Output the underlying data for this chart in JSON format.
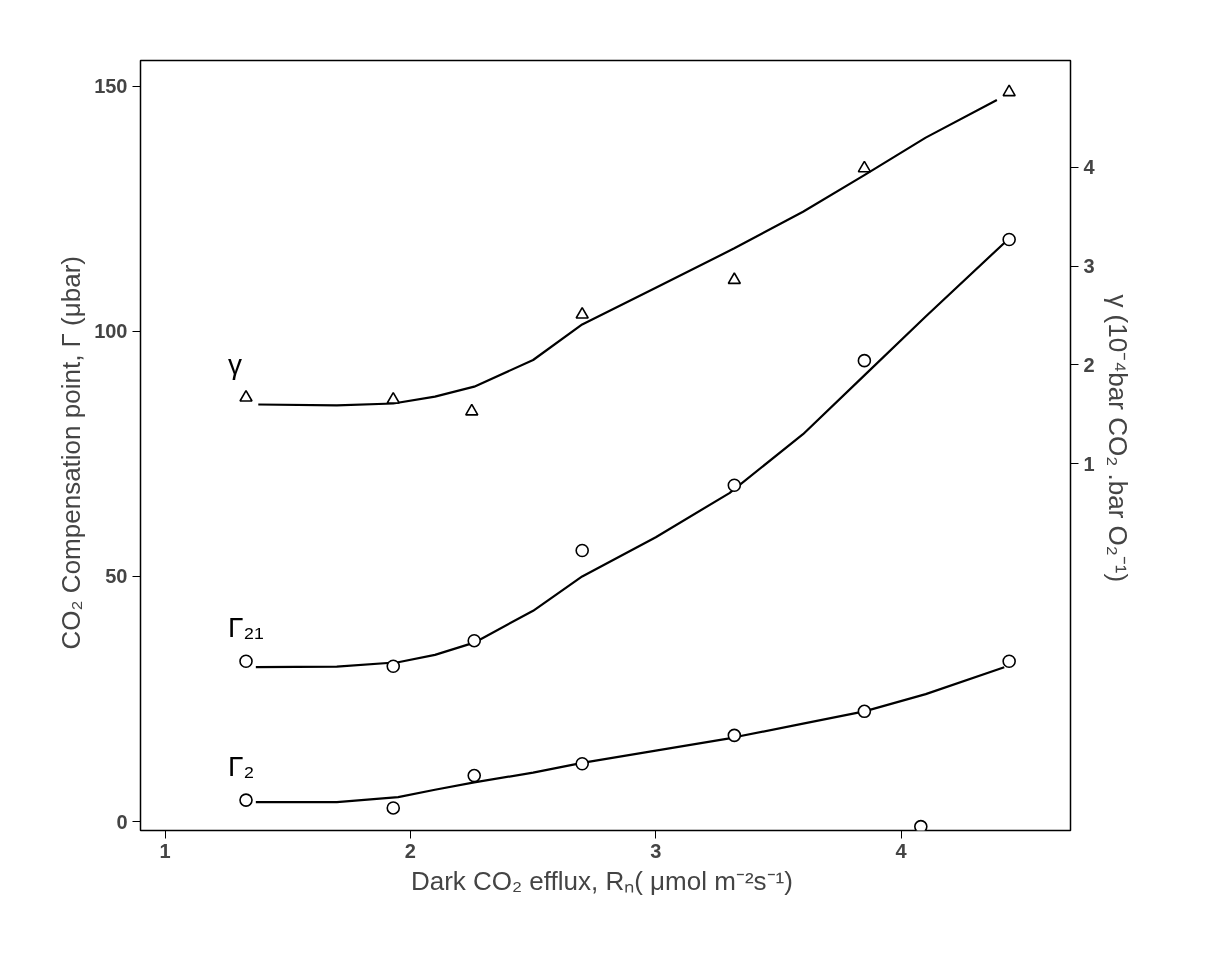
{
  "chart_data": {
    "type": "scatter",
    "xlabel": "Dark CO₂ efflux,  Rₙ( μmol m⁻²s⁻¹)",
    "ylabel": "CO₂  Compensation  point, Γ (μbar)",
    "y2label": "γ (10⁻⁴bar  CO₂ .bar  O₂⁻¹)",
    "xlim": [
      0.9,
      4.69
    ],
    "xticks": [
      1,
      2,
      3,
      4
    ],
    "ylim": [
      -1.8,
      155.2
    ],
    "yticks": [
      0,
      50,
      100,
      150
    ],
    "y2lim": [
      -2.71,
      5.08
    ],
    "y2ticks": [
      1,
      2,
      3,
      4
    ],
    "grid": false,
    "series": [
      {
        "name": "γ",
        "type": "scatter",
        "axis": "y2",
        "marker": "triangle",
        "color": "#000000",
        "x": [
          1.33,
          1.93,
          2.25,
          2.7,
          3.32,
          3.85,
          4.44
        ],
        "values": [
          1.67,
          1.65,
          1.53,
          2.51,
          2.86,
          3.99,
          4.76
        ]
      },
      {
        "type": "line",
        "axis": "y2",
        "color": "#000000",
        "x": [
          1.38,
          1.7,
          1.93,
          2.1,
          2.26,
          2.5,
          2.7,
          3.0,
          3.32,
          3.6,
          3.85,
          4.1,
          4.39
        ],
        "values": [
          1.6,
          1.59,
          1.61,
          1.68,
          1.78,
          2.05,
          2.41,
          2.78,
          3.18,
          3.55,
          3.92,
          4.3,
          4.68
        ]
      },
      {
        "name": "Γ₂₁",
        "type": "scatter",
        "marker": "circle",
        "color": "#000000",
        "x": [
          1.33,
          1.93,
          2.26,
          2.7,
          3.32,
          3.85,
          4.44
        ],
        "values": [
          32.7,
          31.7,
          36.9,
          55.3,
          68.6,
          94.0,
          118.7
        ]
      },
      {
        "type": "line",
        "color": "#000000",
        "x": [
          1.37,
          1.7,
          1.95,
          2.1,
          2.26,
          2.5,
          2.7,
          3.0,
          3.3,
          3.6,
          3.85,
          4.1,
          4.42
        ],
        "values": [
          31.5,
          31.6,
          32.5,
          34,
          36.5,
          43,
          50,
          58,
          67,
          79,
          91,
          103,
          118
        ]
      },
      {
        "name": "Γ₂",
        "type": "scatter",
        "marker": "circle",
        "color": "#000000",
        "x": [
          1.33,
          1.93,
          2.26,
          2.7,
          3.32,
          3.85,
          4.44,
          4.08
        ],
        "values": [
          4.4,
          2.8,
          9.4,
          11.8,
          17.6,
          22.5,
          32.7,
          -1.0
        ]
      },
      {
        "type": "line",
        "color": "#000000",
        "x": [
          1.37,
          1.7,
          1.95,
          2.1,
          2.26,
          2.5,
          2.7,
          3.0,
          3.3,
          3.6,
          3.85,
          4.1,
          4.42
        ],
        "values": [
          4.0,
          4.0,
          5.0,
          6.5,
          8.0,
          10,
          12,
          14.5,
          17,
          20,
          22.5,
          26,
          31.5
        ]
      }
    ]
  }
}
